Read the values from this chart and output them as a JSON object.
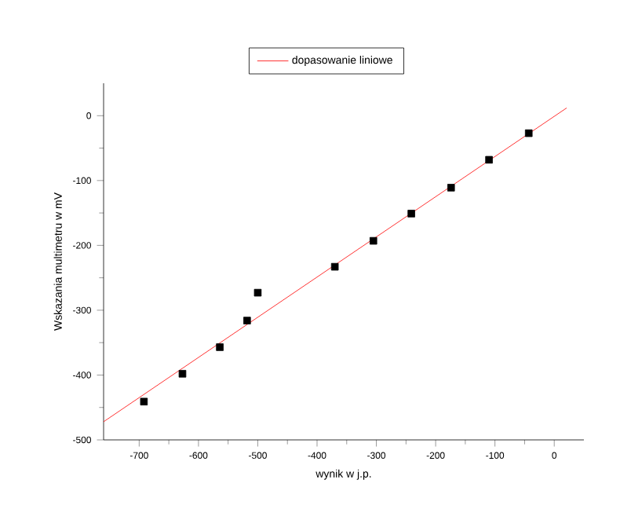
{
  "chart_data": {
    "type": "scatter",
    "xlabel": "wynik w j.p.",
    "ylabel": "Wskazania multimetru w mV",
    "xlim": [
      -760,
      50
    ],
    "ylim": [
      -500,
      50
    ],
    "xticks": [
      -700,
      -600,
      -500,
      -400,
      -300,
      -200,
      -100,
      0
    ],
    "yticks": [
      -500,
      -400,
      -300,
      -200,
      -100,
      0
    ],
    "legend": "top",
    "series": [
      {
        "color": "#000000",
        "marker": "square",
        "x": [
          -692,
          -627,
          -564,
          -518,
          -500,
          -370,
          -305,
          -241,
          -174,
          -110,
          -43
        ],
        "values": [
          -441,
          -398,
          -357,
          -316,
          -273,
          -233,
          -193,
          -151,
          -111,
          -68,
          -27
        ]
      },
      {
        "type": "line",
        "name": "dopasowanie liniowe",
        "color": "#ff0000",
        "marker": "none",
        "x": [
          -760,
          21
        ],
        "values": [
          -472,
          12
        ]
      }
    ]
  }
}
